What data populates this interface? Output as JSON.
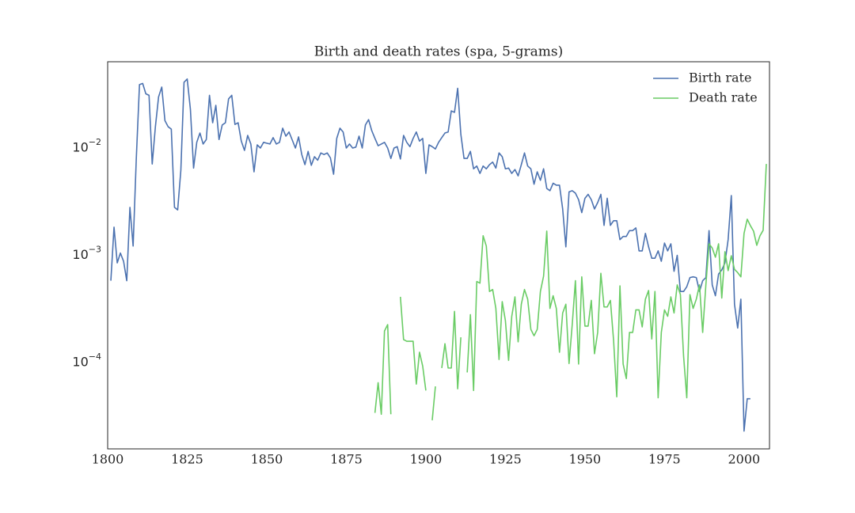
{
  "chart_data": {
    "type": "line",
    "title": "Birth and death rates (spa, 5-grams)",
    "xlim": [
      1800,
      2008
    ],
    "xticks": [
      1800,
      1825,
      1850,
      1875,
      1900,
      1925,
      1950,
      1975,
      2000
    ],
    "ylim": [
      1.57e-05,
      0.0637
    ],
    "yscale": "log",
    "yticks": [
      {
        "value": 0.01,
        "label": "10−2"
      },
      {
        "value": 0.001,
        "label": "10−3"
      },
      {
        "value": 0.0001,
        "label": "10−4"
      }
    ],
    "grid": false,
    "legend": "upper right",
    "series": [
      {
        "name": "Birth rate",
        "color": "#4c72b0",
        "x": [
          1801,
          1802,
          1803,
          1804,
          1805,
          1806,
          1807,
          1808,
          1809,
          1810,
          1811,
          1812,
          1813,
          1814,
          1815,
          1816,
          1817,
          1818,
          1819,
          1820,
          1821,
          1822,
          1823,
          1824,
          1825,
          1826,
          1827,
          1828,
          1829,
          1830,
          1831,
          1832,
          1833,
          1834,
          1835,
          1836,
          1837,
          1838,
          1839,
          1840,
          1841,
          1842,
          1843,
          1844,
          1845,
          1846,
          1847,
          1848,
          1849,
          1850,
          1851,
          1852,
          1853,
          1854,
          1855,
          1856,
          1857,
          1858,
          1859,
          1860,
          1861,
          1862,
          1863,
          1864,
          1865,
          1866,
          1867,
          1868,
          1869,
          1870,
          1871,
          1872,
          1873,
          1874,
          1875,
          1876,
          1877,
          1878,
          1879,
          1880,
          1881,
          1882,
          1883,
          1884,
          1885,
          1886,
          1887,
          1888,
          1889,
          1890,
          1891,
          1892,
          1893,
          1894,
          1895,
          1896,
          1897,
          1898,
          1899,
          1900,
          1901,
          1902,
          1903,
          1904,
          1905,
          1906,
          1907,
          1908,
          1909,
          1910,
          1911,
          1912,
          1913,
          1914,
          1915,
          1916,
          1917,
          1918,
          1919,
          1920,
          1921,
          1922,
          1923,
          1924,
          1925,
          1926,
          1927,
          1928,
          1929,
          1930,
          1931,
          1932,
          1933,
          1934,
          1935,
          1936,
          1937,
          1938,
          1939,
          1940,
          1941,
          1942,
          1943,
          1944,
          1945,
          1946,
          1947,
          1948,
          1949,
          1950,
          1951,
          1952,
          1953,
          1954,
          1955,
          1956,
          1957,
          1958,
          1959,
          1960,
          1961,
          1962,
          1963,
          1964,
          1965,
          1966,
          1967,
          1968,
          1969,
          1970,
          1971,
          1972,
          1973,
          1974,
          1975,
          1976,
          1977,
          1978,
          1979,
          1980,
          1981,
          1982,
          1983,
          1984,
          1985,
          1986,
          1987,
          1988,
          1989,
          1990,
          1991,
          1992,
          1993,
          1994,
          1995,
          1996,
          1997,
          1998,
          1999,
          2000,
          2001,
          2002
        ],
        "values": [
          0.00058,
          0.00183,
          0.00085,
          0.00105,
          0.00088,
          0.00058,
          0.0028,
          0.00122,
          0.008,
          0.039,
          0.04,
          0.032,
          0.031,
          0.0071,
          0.0158,
          0.03,
          0.037,
          0.018,
          0.0158,
          0.015,
          0.0028,
          0.00265,
          0.0062,
          0.041,
          0.044,
          0.023,
          0.0065,
          0.0113,
          0.0138,
          0.0109,
          0.012,
          0.031,
          0.0172,
          0.025,
          0.012,
          0.0164,
          0.0172,
          0.0287,
          0.031,
          0.0166,
          0.0172,
          0.0116,
          0.0095,
          0.0131,
          0.0109,
          0.006,
          0.0107,
          0.01,
          0.0113,
          0.0111,
          0.0109,
          0.0125,
          0.0109,
          0.0113,
          0.0153,
          0.0129,
          0.0141,
          0.0119,
          0.01,
          0.0127,
          0.0087,
          0.007,
          0.0093,
          0.0069,
          0.0083,
          0.0077,
          0.009,
          0.0087,
          0.009,
          0.0081,
          0.0057,
          0.0123,
          0.0153,
          0.0141,
          0.01,
          0.0109,
          0.01,
          0.0102,
          0.0129,
          0.01,
          0.0164,
          0.0184,
          0.0145,
          0.0123,
          0.0105,
          0.0109,
          0.0113,
          0.01,
          0.008,
          0.01,
          0.0103,
          0.0079,
          0.0131,
          0.0113,
          0.0103,
          0.0123,
          0.0141,
          0.0116,
          0.0123,
          0.0058,
          0.0107,
          0.0103,
          0.0098,
          0.0113,
          0.0125,
          0.0138,
          0.0141,
          0.0222,
          0.0215,
          0.036,
          0.0134,
          0.008,
          0.008,
          0.0093,
          0.0064,
          0.0068,
          0.0058,
          0.0068,
          0.0064,
          0.007,
          0.0074,
          0.0065,
          0.009,
          0.0083,
          0.0064,
          0.0065,
          0.0058,
          0.0063,
          0.0055,
          0.007,
          0.009,
          0.0068,
          0.0064,
          0.0046,
          0.006,
          0.005,
          0.0064,
          0.0042,
          0.004,
          0.0047,
          0.0045,
          0.0045,
          0.0027,
          0.0012,
          0.0039,
          0.004,
          0.0038,
          0.0033,
          0.0025,
          0.0034,
          0.0037,
          0.0033,
          0.0027,
          0.0031,
          0.0037,
          0.0019,
          0.0034,
          0.0019,
          0.0021,
          0.0021,
          0.0014,
          0.0015,
          0.0015,
          0.0017,
          0.0017,
          0.0018,
          0.0011,
          0.0011,
          0.0016,
          0.0012,
          0.00094,
          0.00094,
          0.0011,
          0.00088,
          0.0013,
          0.0011,
          0.00128,
          0.00071,
          0.001,
          0.00046,
          0.00046,
          0.00051,
          0.00062,
          0.00063,
          0.00062,
          0.00046,
          0.00058,
          0.00062,
          0.0017,
          0.00053,
          0.00042,
          0.00067,
          0.00073,
          0.00085,
          0.0014,
          0.0036,
          0.00035,
          0.00021,
          0.00039,
          2.3e-05,
          4.6e-05,
          4.6e-05
        ]
      },
      {
        "name": "Death rate",
        "color": "#6acc65",
        "x": [
          1884,
          1885,
          1886,
          1887,
          1888,
          1889,
          1890,
          1891,
          1892,
          1893,
          1894,
          1895,
          1896,
          1897,
          1898,
          1899,
          1900,
          1901,
          1902,
          1903,
          1904,
          1905,
          1906,
          1907,
          1908,
          1909,
          1910,
          1911,
          1912,
          1913,
          1914,
          1915,
          1916,
          1917,
          1918,
          1919,
          1920,
          1921,
          1922,
          1923,
          1924,
          1925,
          1926,
          1927,
          1928,
          1929,
          1930,
          1931,
          1932,
          1933,
          1934,
          1935,
          1936,
          1937,
          1938,
          1939,
          1940,
          1941,
          1942,
          1943,
          1944,
          1945,
          1946,
          1947,
          1948,
          1949,
          1950,
          1951,
          1952,
          1953,
          1954,
          1955,
          1956,
          1957,
          1958,
          1959,
          1960,
          1961,
          1962,
          1963,
          1964,
          1965,
          1966,
          1967,
          1968,
          1969,
          1970,
          1971,
          1972,
          1973,
          1974,
          1975,
          1976,
          1977,
          1978,
          1979,
          1980,
          1981,
          1982,
          1983,
          1984,
          1985,
          1986,
          1987,
          1988,
          1989,
          1990,
          1991,
          1992,
          1993,
          1994,
          1995,
          1996,
          1997,
          1998,
          1999,
          2000,
          2001,
          2002,
          2003,
          2004,
          2005,
          2006,
          2007
        ],
        "values": [
          3.4e-05,
          6.5e-05,
          3.3e-05,
          0.000197,
          0.000226,
          3.3e-05,
          null,
          null,
          0.00041,
          0.000164,
          0.000158,
          0.000158,
          0.000158,
          6.3e-05,
          0.000125,
          9.3e-05,
          5.5e-05,
          null,
          2.9e-05,
          6e-05,
          null,
          8.9e-05,
          0.00015,
          8.9e-05,
          8.9e-05,
          0.0003,
          5.7e-05,
          0.000172,
          null,
          8.1e-05,
          0.00028,
          5.5e-05,
          0.00057,
          0.00055,
          0.00152,
          0.00122,
          0.00046,
          0.00048,
          0.00032,
          0.000107,
          0.00037,
          0.000246,
          0.000105,
          0.00027,
          0.00041,
          0.000156,
          0.00035,
          0.00048,
          0.00039,
          0.000204,
          0.000178,
          0.000204,
          0.00046,
          0.00064,
          0.00168,
          0.00032,
          0.00042,
          0.00032,
          0.000125,
          0.00029,
          0.00035,
          9.8e-05,
          0.000226,
          0.00058,
          9.7e-05,
          0.00063,
          0.000219,
          0.000219,
          0.00038,
          0.000121,
          0.000191,
          0.00068,
          0.00033,
          0.00033,
          0.00038,
          0.000161,
          4.8e-05,
          0.00052,
          9.7e-05,
          7.1e-05,
          0.000191,
          0.000191,
          0.00031,
          0.00031,
          0.000215,
          0.00039,
          0.00047,
          0.000166,
          0.00046,
          4.7e-05,
          0.000191,
          0.00031,
          0.00027,
          0.00041,
          0.00029,
          0.00053,
          0.00043,
          0.000115,
          4.7e-05,
          0.00043,
          0.00032,
          0.00039,
          0.00053,
          0.000191,
          0.00053,
          0.00128,
          0.00117,
          0.00096,
          0.00128,
          0.0004,
          0.00108,
          0.00072,
          0.00099,
          0.00074,
          0.00069,
          0.00063,
          0.0016,
          0.00217,
          0.00189,
          0.00168,
          0.00124,
          0.00152,
          0.00171,
          0.0071
        ]
      }
    ]
  }
}
